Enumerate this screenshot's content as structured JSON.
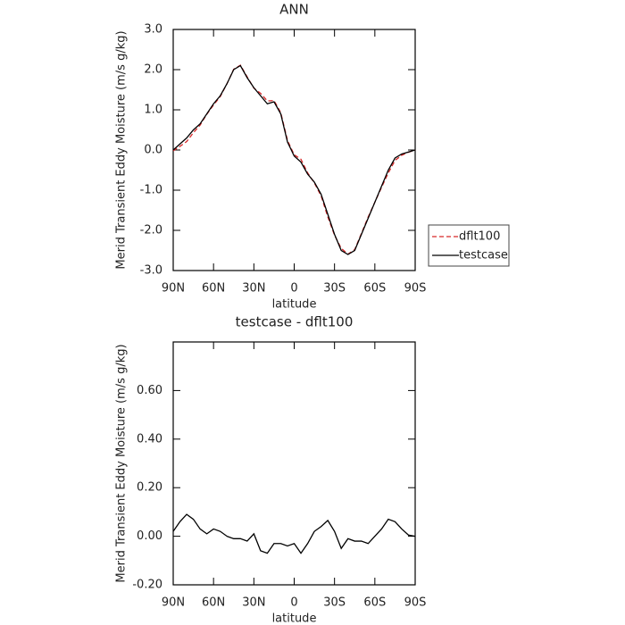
{
  "chart_data": [
    {
      "type": "line",
      "title": "ANN",
      "xlabel": "latitude",
      "ylabel": "Merid Transient Eddy Moisture (m/s g/kg)",
      "x": [
        90,
        85,
        80,
        75,
        70,
        65,
        60,
        55,
        50,
        45,
        40,
        35,
        30,
        25,
        20,
        15,
        10,
        5,
        0,
        -5,
        -10,
        -15,
        -20,
        -25,
        -30,
        -35,
        -40,
        -45,
        -50,
        -55,
        -60,
        -65,
        -70,
        -75,
        -80,
        -85,
        -90
      ],
      "xlim": [
        90,
        -90
      ],
      "xticks": [
        {
          "value": 90,
          "label": "90N"
        },
        {
          "value": 60,
          "label": "60N"
        },
        {
          "value": 30,
          "label": "30N"
        },
        0,
        {
          "value": -30,
          "label": "30S"
        },
        {
          "value": -60,
          "label": "60S"
        },
        {
          "value": -90,
          "label": "90S"
        }
      ],
      "ylim": [
        -3,
        3
      ],
      "yticks": [
        {
          "value": 3,
          "label": "3.0"
        },
        {
          "value": 2,
          "label": "2.0"
        },
        {
          "value": 1,
          "label": "1.0"
        },
        {
          "value": 0,
          "label": "0.0"
        },
        {
          "value": -1,
          "label": "-1.0"
        },
        {
          "value": -2,
          "label": "-2.0"
        },
        {
          "value": -3,
          "label": "-3.0"
        }
      ],
      "legend": "outside-right",
      "series": [
        {
          "name": "dflt100",
          "color": "#d62728",
          "linestyle": "dashed",
          "values": [
            -0.02,
            0.09,
            0.21,
            0.43,
            0.62,
            0.89,
            1.12,
            1.33,
            1.65,
            2.01,
            2.11,
            1.82,
            1.54,
            1.41,
            1.22,
            1.23,
            0.93,
            0.24,
            -0.12,
            -0.23,
            -0.57,
            -0.82,
            -1.14,
            -1.665,
            -2.12,
            -2.45,
            -2.59,
            -2.48,
            -2.08,
            -1.67,
            -1.3,
            -0.93,
            -0.57,
            -0.26,
            -0.13,
            -0.055,
            0.0
          ]
        },
        {
          "name": "testcase",
          "color": "#000000",
          "linestyle": "solid",
          "values": [
            0.0,
            0.15,
            0.3,
            0.5,
            0.65,
            0.9,
            1.15,
            1.35,
            1.65,
            2.0,
            2.1,
            1.8,
            1.55,
            1.35,
            1.15,
            1.2,
            0.9,
            0.2,
            -0.15,
            -0.3,
            -0.6,
            -0.8,
            -1.1,
            -1.6,
            -2.1,
            -2.5,
            -2.6,
            -2.5,
            -2.1,
            -1.7,
            -1.3,
            -0.9,
            -0.5,
            -0.2,
            -0.1,
            -0.05,
            0.0
          ]
        }
      ]
    },
    {
      "type": "line",
      "title": "testcase - dflt100",
      "xlabel": "latitude",
      "ylabel": "Merid Transient Eddy Moisture (m/s g/kg)",
      "x": [
        90,
        85,
        80,
        75,
        70,
        65,
        60,
        55,
        50,
        45,
        40,
        35,
        30,
        25,
        20,
        15,
        10,
        5,
        0,
        -5,
        -10,
        -15,
        -20,
        -25,
        -30,
        -35,
        -40,
        -45,
        -50,
        -55,
        -60,
        -65,
        -70,
        -75,
        -80,
        -85,
        -90
      ],
      "xlim": [
        90,
        -90
      ],
      "xticks": [
        {
          "value": 90,
          "label": "90N"
        },
        {
          "value": 60,
          "label": "60N"
        },
        {
          "value": 30,
          "label": "30N"
        },
        0,
        {
          "value": -30,
          "label": "30S"
        },
        {
          "value": -60,
          "label": "60S"
        },
        {
          "value": -90,
          "label": "90S"
        }
      ],
      "ylim": [
        -0.2,
        0.8
      ],
      "yticks": [
        {
          "value": -0.2,
          "label": "-0.20"
        },
        {
          "value": 0,
          "label": "0.00"
        },
        {
          "value": 0.2,
          "label": "0.20"
        },
        {
          "value": 0.4,
          "label": "0.40"
        },
        {
          "value": 0.6,
          "label": "0.60"
        }
      ],
      "series": [
        {
          "color": "#000000",
          "linestyle": "solid",
          "values": [
            0.02,
            0.06,
            0.09,
            0.07,
            0.03,
            0.01,
            0.03,
            0.02,
            0.0,
            -0.01,
            -0.01,
            -0.02,
            0.01,
            -0.06,
            -0.07,
            -0.03,
            -0.03,
            -0.04,
            -0.03,
            -0.07,
            -0.03,
            0.02,
            0.04,
            0.065,
            0.02,
            -0.05,
            -0.01,
            -0.02,
            -0.02,
            -0.03,
            0.0,
            0.03,
            0.07,
            0.06,
            0.03,
            0.005,
            0.0
          ]
        }
      ]
    }
  ]
}
